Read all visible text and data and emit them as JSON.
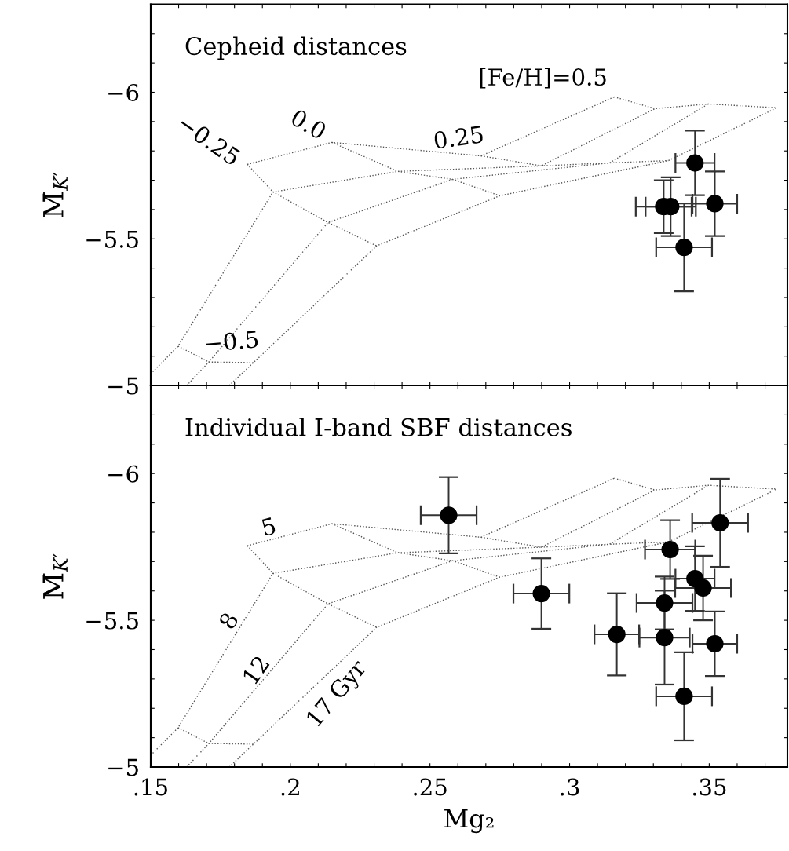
{
  "chart_data": [
    {
      "type": "scatter",
      "xlim": [
        0.15,
        0.378
      ],
      "ylim": [
        -5,
        -6.3
      ],
      "xticks": [
        {
          "value": 0.15,
          "label": null
        },
        {
          "value": 0.16,
          "label": null
        },
        {
          "value": 0.17,
          "label": null
        },
        {
          "value": 0.18,
          "label": null
        },
        {
          "value": 0.19,
          "label": null
        },
        {
          "value": 0.2,
          "label": null
        },
        {
          "value": 0.21,
          "label": null
        },
        {
          "value": 0.22,
          "label": null
        },
        {
          "value": 0.23,
          "label": null
        },
        {
          "value": 0.24,
          "label": null
        },
        {
          "value": 0.25,
          "label": null
        },
        {
          "value": 0.26,
          "label": null
        },
        {
          "value": 0.27,
          "label": null
        },
        {
          "value": 0.28,
          "label": null
        },
        {
          "value": 0.29,
          "label": null
        },
        {
          "value": 0.3,
          "label": null
        },
        {
          "value": 0.31,
          "label": null
        },
        {
          "value": 0.32,
          "label": null
        },
        {
          "value": 0.33,
          "label": null
        },
        {
          "value": 0.34,
          "label": null
        },
        {
          "value": 0.35,
          "label": null
        },
        {
          "value": 0.36,
          "label": null
        },
        {
          "value": 0.37,
          "label": null
        }
      ],
      "yticks": [
        {
          "value": -5,
          "label": "−5"
        },
        {
          "value": -5.1,
          "label": null
        },
        {
          "value": -5.2,
          "label": null
        },
        {
          "value": -5.3,
          "label": null
        },
        {
          "value": -5.4,
          "label": null
        },
        {
          "value": -5.5,
          "label": "−5.5"
        },
        {
          "value": -5.6,
          "label": null
        },
        {
          "value": -5.7,
          "label": null
        },
        {
          "value": -5.8,
          "label": null
        },
        {
          "value": -5.9,
          "label": null
        },
        {
          "value": -6,
          "label": "−6"
        },
        {
          "value": -6.1,
          "label": null
        },
        {
          "value": -6.2,
          "label": null
        }
      ],
      "tick_labels": "y",
      "ylabel": "M̄$_{K′}$",
      "grid": false,
      "legend": false,
      "annotations": [
        "Cepheid distances",
        "−0.25",
        "0.0",
        "0.25",
        "[Fe/H]=0.5",
        "−0.5"
      ],
      "series": [
        {
          "type": "line",
          "line_style": "dotted",
          "marker": "none",
          "color": "#555555",
          "x": [
            0.1846,
            0.2149,
            0.2683,
            0.316
          ],
          "values": [
            -5.754,
            -5.829,
            -5.783,
            -5.984
          ]
        },
        {
          "type": "line",
          "line_style": "dotted",
          "marker": "none",
          "color": "#555555",
          "x": [
            0.15,
            0.1598,
            0.1938,
            0.2385,
            0.2899,
            0.3306
          ],
          "values": [
            -5.04,
            -5.134,
            -5.66,
            -5.73,
            -5.749,
            -5.944
          ]
        },
        {
          "type": "line",
          "line_style": "dotted",
          "marker": "none",
          "color": "#555555",
          "x": [
            0.1629,
            0.1708,
            0.2135,
            0.2581,
            0.3143,
            0.3497
          ],
          "values": [
            -5.0,
            -5.08,
            -5.556,
            -5.703,
            -5.759,
            -5.96
          ]
        },
        {
          "type": "line",
          "line_style": "dotted",
          "marker": "none",
          "color": "#555555",
          "x": [
            0.1781,
            0.1868,
            0.2309,
            0.275,
            0.3354,
            0.3742
          ],
          "values": [
            -5.0,
            -5.078,
            -5.476,
            -5.647,
            -5.767,
            -5.947
          ]
        },
        {
          "type": "line",
          "line_style": "dotted",
          "marker": "none",
          "color": "#555555",
          "x": [
            0.1598,
            0.1708,
            0.1868
          ],
          "values": [
            -5.134,
            -5.08,
            -5.078
          ]
        },
        {
          "type": "line",
          "line_style": "dotted",
          "marker": "none",
          "color": "#555555",
          "x": [
            0.1846,
            0.1938,
            0.2135,
            0.2309
          ],
          "values": [
            -5.754,
            -5.66,
            -5.556,
            -5.476
          ]
        },
        {
          "type": "line",
          "line_style": "dotted",
          "marker": "none",
          "color": "#555555",
          "x": [
            0.2149,
            0.2385,
            0.2581,
            0.275
          ],
          "values": [
            -5.829,
            -5.73,
            -5.703,
            -5.647
          ]
        },
        {
          "type": "line",
          "line_style": "dotted",
          "marker": "none",
          "color": "#555555",
          "x": [
            0.2683,
            0.2899,
            0.3143,
            0.3354
          ],
          "values": [
            -5.783,
            -5.749,
            -5.759,
            -5.767
          ]
        },
        {
          "type": "line",
          "line_style": "dotted",
          "marker": "none",
          "color": "#555555",
          "x": [
            0.316,
            0.3306,
            0.3497,
            0.3742
          ],
          "values": [
            -5.984,
            -5.944,
            -5.96,
            -5.947
          ]
        },
        {
          "marker": "circle",
          "color": "#000000",
          "x": [
            0.3449,
            0.3337,
            0.3362,
            0.352,
            0.341
          ],
          "values": [
            -5.759,
            -5.61,
            -5.61,
            -5.62,
            -5.471
          ],
          "errors": [
            0.11,
            0.09,
            0.1,
            0.11,
            0.15
          ],
          "xerrors": [
            0.007,
            0.01,
            0.009,
            0.008,
            0.01
          ]
        }
      ]
    },
    {
      "type": "scatter",
      "xlim": [
        0.15,
        0.378
      ],
      "ylim": [
        -5,
        -6.3
      ],
      "xticks": [
        {
          "value": 0.15,
          "label": ".15"
        },
        {
          "value": 0.16,
          "label": null
        },
        {
          "value": 0.17,
          "label": null
        },
        {
          "value": 0.18,
          "label": null
        },
        {
          "value": 0.19,
          "label": null
        },
        {
          "value": 0.2,
          "label": ".2"
        },
        {
          "value": 0.21,
          "label": null
        },
        {
          "value": 0.22,
          "label": null
        },
        {
          "value": 0.23,
          "label": null
        },
        {
          "value": 0.24,
          "label": null
        },
        {
          "value": 0.25,
          "label": ".25"
        },
        {
          "value": 0.26,
          "label": null
        },
        {
          "value": 0.27,
          "label": null
        },
        {
          "value": 0.28,
          "label": null
        },
        {
          "value": 0.29,
          "label": null
        },
        {
          "value": 0.3,
          "label": ".3"
        },
        {
          "value": 0.31,
          "label": null
        },
        {
          "value": 0.32,
          "label": null
        },
        {
          "value": 0.33,
          "label": null
        },
        {
          "value": 0.34,
          "label": null
        },
        {
          "value": 0.35,
          "label": ".35"
        },
        {
          "value": 0.36,
          "label": null
        },
        {
          "value": 0.37,
          "label": null
        }
      ],
      "yticks": [
        {
          "value": -5,
          "label": "−5"
        },
        {
          "value": -5.1,
          "label": null
        },
        {
          "value": -5.2,
          "label": null
        },
        {
          "value": -5.3,
          "label": null
        },
        {
          "value": -5.4,
          "label": null
        },
        {
          "value": -5.5,
          "label": "−5.5"
        },
        {
          "value": -5.6,
          "label": null
        },
        {
          "value": -5.7,
          "label": null
        },
        {
          "value": -5.8,
          "label": null
        },
        {
          "value": -5.9,
          "label": null
        },
        {
          "value": -6,
          "label": "−6"
        },
        {
          "value": -6.1,
          "label": null
        },
        {
          "value": -6.2,
          "label": null
        }
      ],
      "xlabel": "Mg₂",
      "ylabel": "M̄$_{K′}$",
      "grid": false,
      "legend": false,
      "annotations": [
        "Individual I-band SBF distances",
        "5",
        "8",
        "12",
        "17 Gyr"
      ],
      "series": [
        {
          "type": "line",
          "line_style": "dotted",
          "marker": "none",
          "color": "#555555",
          "x": [
            0.1846,
            0.2149,
            0.2683,
            0.316
          ],
          "values": [
            -5.754,
            -5.829,
            -5.783,
            -5.984
          ]
        },
        {
          "type": "line",
          "line_style": "dotted",
          "marker": "none",
          "color": "#555555",
          "x": [
            0.15,
            0.1598,
            0.1938,
            0.2385,
            0.2899,
            0.3306
          ],
          "values": [
            -5.04,
            -5.134,
            -5.66,
            -5.73,
            -5.749,
            -5.944
          ]
        },
        {
          "type": "line",
          "line_style": "dotted",
          "marker": "none",
          "color": "#555555",
          "x": [
            0.1629,
            0.1708,
            0.2135,
            0.2581,
            0.3143,
            0.3497
          ],
          "values": [
            -5.0,
            -5.08,
            -5.556,
            -5.703,
            -5.759,
            -5.96
          ]
        },
        {
          "type": "line",
          "line_style": "dotted",
          "marker": "none",
          "color": "#555555",
          "x": [
            0.1781,
            0.1868,
            0.2309,
            0.275,
            0.3354,
            0.3742
          ],
          "values": [
            -5.0,
            -5.078,
            -5.476,
            -5.647,
            -5.767,
            -5.947
          ]
        },
        {
          "type": "line",
          "line_style": "dotted",
          "marker": "none",
          "color": "#555555",
          "x": [
            0.1598,
            0.1708,
            0.1868
          ],
          "values": [
            -5.134,
            -5.08,
            -5.078
          ]
        },
        {
          "type": "line",
          "line_style": "dotted",
          "marker": "none",
          "color": "#555555",
          "x": [
            0.1846,
            0.1938,
            0.2135,
            0.2309
          ],
          "values": [
            -5.754,
            -5.66,
            -5.556,
            -5.476
          ]
        },
        {
          "type": "line",
          "line_style": "dotted",
          "marker": "none",
          "color": "#555555",
          "x": [
            0.2149,
            0.2385,
            0.2581,
            0.275
          ],
          "values": [
            -5.829,
            -5.73,
            -5.703,
            -5.647
          ]
        },
        {
          "type": "line",
          "line_style": "dotted",
          "marker": "none",
          "color": "#555555",
          "x": [
            0.2683,
            0.2899,
            0.3143,
            0.3354
          ],
          "values": [
            -5.783,
            -5.749,
            -5.759,
            -5.767
          ]
        },
        {
          "type": "line",
          "line_style": "dotted",
          "marker": "none",
          "color": "#555555",
          "x": [
            0.316,
            0.3306,
            0.3497,
            0.3742
          ],
          "values": [
            -5.984,
            -5.944,
            -5.96,
            -5.947
          ]
        },
        {
          "marker": "circle",
          "color": "#000000",
          "x": [
            0.3539,
            0.336,
            0.3449,
            0.3478,
            0.334,
            0.334,
            0.3169,
            0.352,
            0.341,
            0.2567,
            0.2899
          ],
          "values": [
            -5.832,
            -5.741,
            -5.642,
            -5.61,
            -5.559,
            -5.441,
            -5.452,
            -5.42,
            -5.241,
            -5.858,
            -5.591
          ],
          "errors": [
            0.15,
            0.1,
            0.11,
            0.11,
            0.09,
            0.16,
            0.14,
            0.11,
            0.15,
            0.13,
            0.12
          ],
          "xerrors": [
            0.01,
            0.009,
            0.007,
            0.01,
            0.01,
            0.009,
            0.008,
            0.008,
            0.01,
            0.01,
            0.01
          ]
        }
      ]
    }
  ]
}
